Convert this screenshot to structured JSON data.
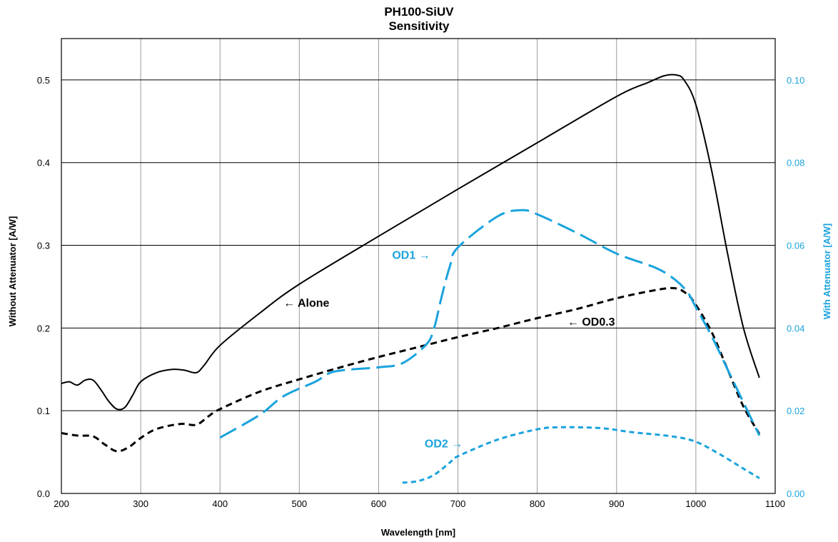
{
  "chart_data": {
    "type": "line",
    "title": "PH100-SiUV",
    "subtitle": "Sensitivity",
    "xlabel": "Wavelength [nm]",
    "ylabel_left": "Without Attenuator [A/W]",
    "ylabel_right": "With Attenuator [A/W]",
    "xlim": [
      200,
      1100
    ],
    "ylim_left": [
      0,
      0.55
    ],
    "ylim_right": [
      0,
      0.11
    ],
    "x_ticks": [
      "200",
      "300",
      "400",
      "500",
      "600",
      "700",
      "800",
      "900",
      "1000",
      "1100"
    ],
    "y_left_ticks": [
      "0.0",
      "0.1",
      "0.2",
      "0.3",
      "0.4",
      "0.5"
    ],
    "y_right_ticks": [
      "0.00",
      "0.02",
      "0.04",
      "0.06",
      "0.08",
      "0.10"
    ],
    "grid": true,
    "colors": {
      "left_axis": "#000000",
      "right_axis": "#1aa3dd",
      "grid": "#9a9a9a"
    },
    "series": [
      {
        "id": "alone",
        "axis": "left",
        "color": "#000000",
        "dash": "solid",
        "points": [
          [
            200,
            0.133
          ],
          [
            210,
            0.135
          ],
          [
            220,
            0.131
          ],
          [
            230,
            0.137
          ],
          [
            240,
            0.137
          ],
          [
            250,
            0.125
          ],
          [
            260,
            0.111
          ],
          [
            270,
            0.102
          ],
          [
            280,
            0.104
          ],
          [
            290,
            0.119
          ],
          [
            300,
            0.135
          ],
          [
            320,
            0.146
          ],
          [
            340,
            0.15
          ],
          [
            355,
            0.149
          ],
          [
            370,
            0.146
          ],
          [
            380,
            0.155
          ],
          [
            400,
            0.179
          ],
          [
            450,
            0.218
          ],
          [
            500,
            0.253
          ],
          [
            600,
            0.311
          ],
          [
            700,
            0.368
          ],
          [
            800,
            0.424
          ],
          [
            900,
            0.48
          ],
          [
            940,
            0.497
          ],
          [
            960,
            0.505
          ],
          [
            975,
            0.506
          ],
          [
            985,
            0.5
          ],
          [
            1000,
            0.47
          ],
          [
            1020,
            0.39
          ],
          [
            1040,
            0.29
          ],
          [
            1060,
            0.2
          ],
          [
            1080,
            0.14
          ]
        ]
      },
      {
        "id": "od03",
        "axis": "left",
        "color": "#000000",
        "dash": "dashed",
        "points": [
          [
            200,
            0.073
          ],
          [
            220,
            0.07
          ],
          [
            240,
            0.069
          ],
          [
            255,
            0.059
          ],
          [
            270,
            0.051
          ],
          [
            285,
            0.056
          ],
          [
            300,
            0.067
          ],
          [
            320,
            0.078
          ],
          [
            350,
            0.084
          ],
          [
            370,
            0.083
          ],
          [
            385,
            0.093
          ],
          [
            400,
            0.102
          ],
          [
            450,
            0.123
          ],
          [
            500,
            0.138
          ],
          [
            550,
            0.152
          ],
          [
            600,
            0.165
          ],
          [
            650,
            0.177
          ],
          [
            700,
            0.189
          ],
          [
            750,
            0.2
          ],
          [
            800,
            0.212
          ],
          [
            850,
            0.223
          ],
          [
            900,
            0.236
          ],
          [
            950,
            0.246
          ],
          [
            975,
            0.248
          ],
          [
            990,
            0.24
          ],
          [
            1000,
            0.228
          ],
          [
            1020,
            0.195
          ],
          [
            1040,
            0.15
          ],
          [
            1060,
            0.105
          ],
          [
            1080,
            0.072
          ]
        ]
      },
      {
        "id": "od1",
        "axis": "right",
        "color": "#1aa3dd",
        "dash": "long-dash",
        "points": [
          [
            400,
            0.0135
          ],
          [
            450,
            0.019
          ],
          [
            480,
            0.0235
          ],
          [
            520,
            0.027
          ],
          [
            545,
            0.0295
          ],
          [
            600,
            0.0305
          ],
          [
            630,
            0.0315
          ],
          [
            660,
            0.036
          ],
          [
            670,
            0.04
          ],
          [
            680,
            0.048
          ],
          [
            690,
            0.055
          ],
          [
            700,
            0.0595
          ],
          [
            750,
            0.067
          ],
          [
            780,
            0.0685
          ],
          [
            800,
            0.0675
          ],
          [
            850,
            0.063
          ],
          [
            900,
            0.058
          ],
          [
            950,
            0.0545
          ],
          [
            975,
            0.0515
          ],
          [
            990,
            0.0485
          ],
          [
            1000,
            0.045
          ],
          [
            1020,
            0.038
          ],
          [
            1040,
            0.03
          ],
          [
            1060,
            0.022
          ],
          [
            1080,
            0.014
          ]
        ]
      },
      {
        "id": "od2",
        "axis": "right",
        "color": "#1aa3dd",
        "dash": "short-dash",
        "points": [
          [
            630,
            0.0026
          ],
          [
            650,
            0.003
          ],
          [
            670,
            0.0045
          ],
          [
            690,
            0.0075
          ],
          [
            700,
            0.009
          ],
          [
            750,
            0.013
          ],
          [
            800,
            0.0155
          ],
          [
            830,
            0.016
          ],
          [
            880,
            0.0158
          ],
          [
            920,
            0.0148
          ],
          [
            970,
            0.0138
          ],
          [
            1000,
            0.0125
          ],
          [
            1030,
            0.0095
          ],
          [
            1060,
            0.006
          ],
          [
            1080,
            0.0037
          ]
        ]
      }
    ],
    "annotations": [
      {
        "id": "alone",
        "text": "← Alone",
        "x": 480,
        "y": 0.231,
        "axis": "left",
        "color": "#000000",
        "anchor": "start"
      },
      {
        "id": "od03",
        "text": "← OD0.3",
        "x": 838,
        "y": 0.208,
        "axis": "left",
        "color": "#000000",
        "anchor": "start"
      },
      {
        "id": "od1",
        "text": "OD1 →",
        "x": 665,
        "y": 0.0578,
        "axis": "right",
        "color": "#1aa3dd",
        "anchor": "end"
      },
      {
        "id": "od2",
        "text": "OD2 →",
        "x": 706,
        "y": 0.0122,
        "axis": "right",
        "color": "#1aa3dd",
        "anchor": "end"
      }
    ]
  }
}
